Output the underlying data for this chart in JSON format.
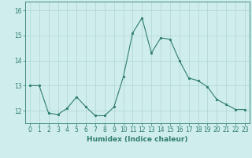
{
  "x": [
    0,
    1,
    2,
    3,
    4,
    5,
    6,
    7,
    8,
    9,
    10,
    11,
    12,
    13,
    14,
    15,
    16,
    17,
    18,
    19,
    20,
    21,
    22,
    23
  ],
  "y": [
    13.0,
    13.0,
    11.9,
    11.85,
    12.1,
    12.55,
    12.15,
    11.8,
    11.8,
    12.15,
    13.35,
    15.1,
    15.7,
    14.3,
    14.9,
    14.85,
    14.0,
    13.3,
    13.2,
    12.95,
    12.45,
    12.25,
    12.05,
    12.05
  ],
  "line_color": "#2e7d6e",
  "marker_color": "#2e7d6e",
  "bg_color": "#d0eded",
  "grid_color": "#aed4d4",
  "axis_color": "#2e7d6e",
  "xlabel": "Humidex (Indice chaleur)",
  "ylim_min": 11.5,
  "ylim_max": 16.35,
  "xlim_min": -0.5,
  "xlim_max": 23.5,
  "yticks": [
    12,
    13,
    14,
    15,
    16
  ],
  "xticks": [
    0,
    1,
    2,
    3,
    4,
    5,
    6,
    7,
    8,
    9,
    10,
    11,
    12,
    13,
    14,
    15,
    16,
    17,
    18,
    19,
    20,
    21,
    22,
    23
  ],
  "fontsize_label": 6.5,
  "fontsize_tick": 5.5
}
